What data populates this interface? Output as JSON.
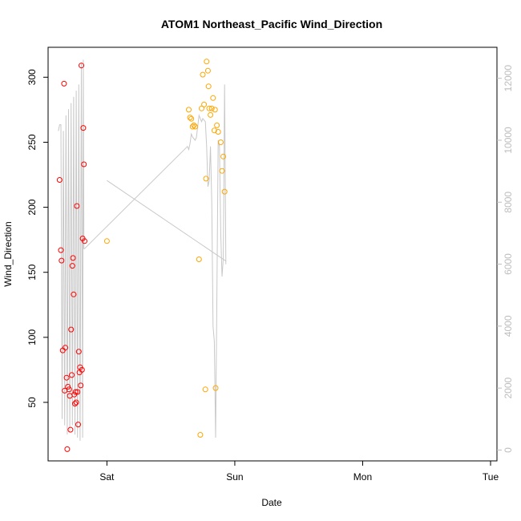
{
  "chart_data": {
    "type": "scatter",
    "title": "ATOM1 Northeast_Pacific Wind_Direction",
    "xlabel": "Date",
    "ylabel": "Wind_Direction",
    "x_ticks": [
      "Sat",
      "Sun",
      "Mon",
      "Tue"
    ],
    "xlim": [
      -0.46,
      3.05
    ],
    "ylim": [
      5,
      323
    ],
    "y_ticks": [
      50,
      100,
      150,
      200,
      250,
      300
    ],
    "y2lim": [
      -350,
      13000
    ],
    "y2_ticks": [
      0,
      2000,
      4000,
      6000,
      8000,
      10000,
      12000
    ],
    "grid": false,
    "colors": {
      "series_red": "#ff0000",
      "series_orange": "#ffa500",
      "line": "#c8c8c8",
      "axis": "#000000",
      "right_axis": "#bdbdbd"
    },
    "series": [
      {
        "color": "#ff0000",
        "points": [
          [
            -0.37,
            221
          ],
          [
            -0.36,
            167
          ],
          [
            -0.355,
            159
          ],
          [
            -0.345,
            90
          ],
          [
            -0.335,
            295
          ],
          [
            -0.33,
            59
          ],
          [
            -0.325,
            92
          ],
          [
            -0.315,
            69
          ],
          [
            -0.31,
            14
          ],
          [
            -0.305,
            62
          ],
          [
            -0.295,
            60
          ],
          [
            -0.29,
            55
          ],
          [
            -0.285,
            29
          ],
          [
            -0.28,
            106
          ],
          [
            -0.275,
            71
          ],
          [
            -0.27,
            155
          ],
          [
            -0.265,
            161
          ],
          [
            -0.26,
            133
          ],
          [
            -0.255,
            56
          ],
          [
            -0.25,
            49
          ],
          [
            -0.245,
            58
          ],
          [
            -0.24,
            50
          ],
          [
            -0.235,
            201
          ],
          [
            -0.23,
            58
          ],
          [
            -0.225,
            33
          ],
          [
            -0.22,
            89
          ],
          [
            -0.215,
            73
          ],
          [
            -0.21,
            77
          ],
          [
            -0.205,
            63
          ],
          [
            -0.2,
            309
          ],
          [
            -0.195,
            75
          ],
          [
            -0.19,
            176
          ],
          [
            -0.185,
            261
          ],
          [
            -0.18,
            233
          ],
          [
            -0.175,
            174
          ]
        ]
      },
      {
        "color": "#ffa500",
        "points": [
          [
            0.0,
            174
          ],
          [
            0.64,
            275
          ],
          [
            0.65,
            269
          ],
          [
            0.66,
            268
          ],
          [
            0.67,
            262
          ],
          [
            0.68,
            263
          ],
          [
            0.69,
            262
          ],
          [
            0.72,
            160
          ],
          [
            0.73,
            25
          ],
          [
            0.74,
            276
          ],
          [
            0.75,
            302
          ],
          [
            0.76,
            279
          ],
          [
            0.77,
            60
          ],
          [
            0.775,
            222
          ],
          [
            0.78,
            312
          ],
          [
            0.79,
            305
          ],
          [
            0.795,
            293
          ],
          [
            0.8,
            276
          ],
          [
            0.81,
            271
          ],
          [
            0.82,
            276
          ],
          [
            0.83,
            284
          ],
          [
            0.84,
            259
          ],
          [
            0.845,
            275
          ],
          [
            0.85,
            61
          ],
          [
            0.86,
            263
          ],
          [
            0.87,
            258
          ],
          [
            0.89,
            250
          ],
          [
            0.9,
            228
          ],
          [
            0.91,
            239
          ],
          [
            0.92,
            212
          ]
        ]
      }
    ],
    "line_y2": [
      [
        -0.38,
        10300
      ],
      [
        -0.37,
        10500
      ],
      [
        -0.36,
        10500
      ],
      [
        -0.35,
        1000
      ],
      [
        -0.34,
        10300
      ],
      [
        -0.33,
        800
      ],
      [
        -0.32,
        10800
      ],
      [
        -0.31,
        500
      ],
      [
        -0.3,
        11000
      ],
      [
        -0.29,
        600
      ],
      [
        -0.28,
        11200
      ],
      [
        -0.27,
        800
      ],
      [
        -0.26,
        11400
      ],
      [
        -0.25,
        500
      ],
      [
        -0.24,
        11600
      ],
      [
        -0.23,
        400
      ],
      [
        -0.22,
        11800
      ],
      [
        -0.21,
        300
      ],
      [
        -0.2,
        12500
      ],
      [
        -0.19,
        400
      ],
      [
        -0.185,
        12600
      ],
      [
        -0.18,
        6500
      ],
      [
        -0.175,
        6500
      ],
      [
        0.63,
        9800
      ],
      [
        0.64,
        9700
      ],
      [
        0.65,
        9900
      ],
      [
        0.66,
        10200
      ],
      [
        0.67,
        10100
      ],
      [
        0.69,
        10000
      ],
      [
        0.7,
        10100
      ],
      [
        0.72,
        10800
      ],
      [
        0.73,
        10700
      ],
      [
        0.74,
        10600
      ],
      [
        0.75,
        10700
      ],
      [
        0.77,
        10600
      ],
      [
        0.78,
        9800
      ],
      [
        0.79,
        8500
      ],
      [
        0.8,
        8700
      ],
      [
        0.81,
        9800
      ],
      [
        0.82,
        8000
      ],
      [
        0.83,
        4000
      ],
      [
        0.84,
        3500
      ],
      [
        0.85,
        400
      ],
      [
        0.86,
        5000
      ],
      [
        0.87,
        10000
      ],
      [
        0.88,
        9800
      ],
      [
        0.89,
        7000
      ],
      [
        0.9,
        5600
      ],
      [
        0.91,
        6200
      ],
      [
        0.92,
        11800
      ],
      [
        0.93,
        6000
      ]
    ],
    "line_y2_b": [
      [
        0.0,
        8700
      ],
      [
        0.93,
        6100
      ]
    ]
  }
}
